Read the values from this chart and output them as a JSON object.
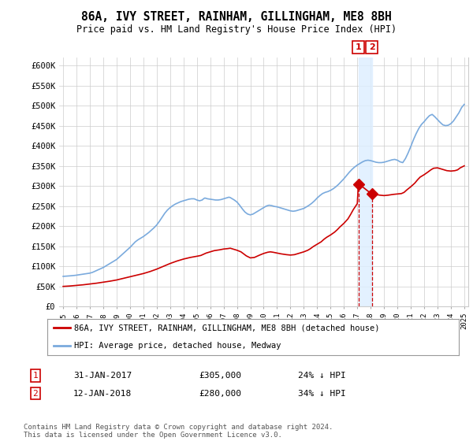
{
  "title": "86A, IVY STREET, RAINHAM, GILLINGHAM, ME8 8BH",
  "subtitle": "Price paid vs. HM Land Registry's House Price Index (HPI)",
  "ylim": [
    0,
    620000
  ],
  "yticks": [
    0,
    50000,
    100000,
    150000,
    200000,
    250000,
    300000,
    350000,
    400000,
    450000,
    500000,
    550000,
    600000
  ],
  "ytick_labels": [
    "£0",
    "£50K",
    "£100K",
    "£150K",
    "£200K",
    "£250K",
    "£300K",
    "£350K",
    "£400K",
    "£450K",
    "£500K",
    "£550K",
    "£600K"
  ],
  "hpi_color": "#7aaadd",
  "price_color": "#cc0000",
  "annotation_color": "#cc0000",
  "shade_color": "#ddeeff",
  "marker1_x": 2017.08,
  "marker2_x": 2018.08,
  "marker1_y": 305000,
  "marker2_y": 280000,
  "legend_entries": [
    "86A, IVY STREET, RAINHAM, GILLINGHAM, ME8 8BH (detached house)",
    "HPI: Average price, detached house, Medway"
  ],
  "table_rows": [
    [
      "1",
      "31-JAN-2017",
      "£305,000",
      "24% ↓ HPI"
    ],
    [
      "2",
      "12-JAN-2018",
      "£280,000",
      "34% ↓ HPI"
    ]
  ],
  "footnote": "Contains HM Land Registry data © Crown copyright and database right 2024.\nThis data is licensed under the Open Government Licence v3.0.",
  "background_color": "#ffffff",
  "grid_color": "#cccccc",
  "xlim_left": 1994.7,
  "xlim_right": 2025.3
}
